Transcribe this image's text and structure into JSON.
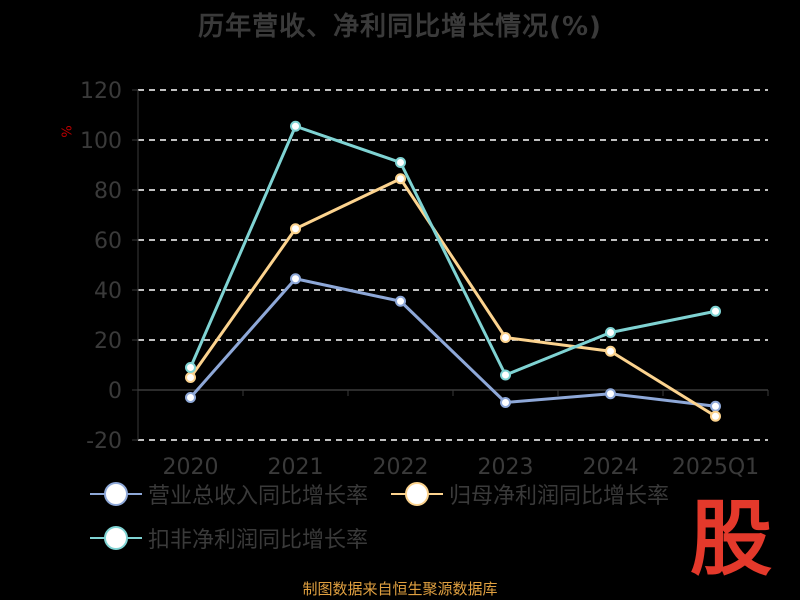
{
  "chart_data": {
    "type": "line",
    "title": "历年营收、净利同比增长情况(%)",
    "ylabel": "%",
    "categories": [
      "2020",
      "2021",
      "2022",
      "2023",
      "2024",
      "2025Q1"
    ],
    "ylim": [
      -20,
      120
    ],
    "yticks": [
      120,
      100,
      80,
      60,
      40,
      20,
      0,
      -20
    ],
    "grid": true,
    "legend_position": "bottom",
    "series": [
      {
        "name": "营业总收入同比增长率",
        "color": "#8ea8d8",
        "values": [
          -3,
          44.5,
          35.5,
          -5,
          -1.5,
          -6.5
        ]
      },
      {
        "name": "归母净利润同比增长率",
        "color": "#fcd38e",
        "values": [
          5,
          64.5,
          84.5,
          21,
          15.5,
          -10.5
        ]
      },
      {
        "name": "扣非净利润同比增长率",
        "color": "#7fd3d3",
        "values": [
          9,
          105.5,
          91,
          6,
          23,
          31.5
        ]
      }
    ]
  },
  "source_text": "制图数据来自恒生聚源数据库",
  "watermark_text": "股"
}
